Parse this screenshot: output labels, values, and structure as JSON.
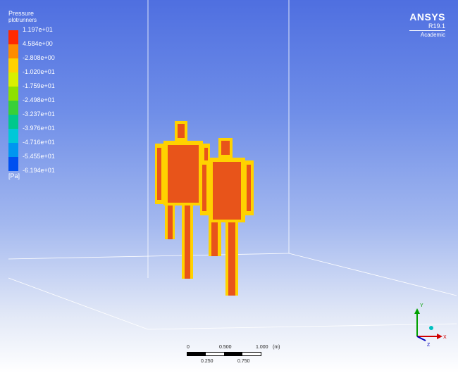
{
  "legend": {
    "title": "Pressure",
    "subtitle": "plotrunners",
    "unit": "[Pa]",
    "values": [
      "1.197e+01",
      "4.584e+00",
      "-2.808e+00",
      "-1.020e+01",
      "-1.759e+01",
      "-2.498e+01",
      "-3.237e+01",
      "-3.976e+01",
      "-4.716e+01",
      "-5.455e+01",
      "-6.194e+01"
    ],
    "colors": [
      "#ff2a00",
      "#ff8c00",
      "#ffd200",
      "#d8f000",
      "#8ee000",
      "#38d038",
      "#00c88c",
      "#00c8d8",
      "#0096f0",
      "#0050f0"
    ]
  },
  "brand": {
    "name": "ANSYS",
    "version": "R19.1",
    "edition": "Academic"
  },
  "scale": {
    "top_labels": [
      "0",
      "0.500",
      "1.000",
      "(m)"
    ],
    "bottom_labels": [
      "0.250",
      "0.750"
    ]
  },
  "axes": {
    "y": "Y",
    "x": "X",
    "z": "Z"
  },
  "colors": {
    "body_surface": "#e8541a",
    "body_edge": "#ffd200"
  }
}
